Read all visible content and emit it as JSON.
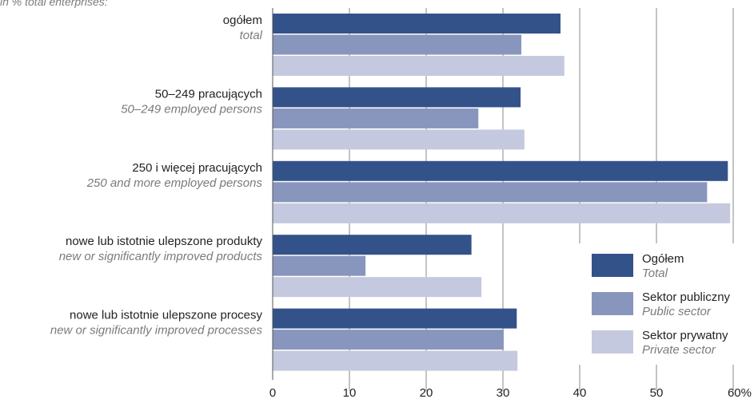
{
  "note": "in % total enterprises:",
  "chart_data": {
    "type": "bar",
    "orientation": "horizontal",
    "categories": [
      {
        "label": "ogółem",
        "sublabel": "total"
      },
      {
        "label": "50–249 pracujących",
        "sublabel": "50–249 employed persons"
      },
      {
        "label": "250 i więcej pracujących",
        "sublabel": "250 and more employed persons"
      },
      {
        "label": "nowe lub istotnie ulepszone produkty",
        "sublabel": "new or significantly improved products"
      },
      {
        "label": "nowe lub istotnie ulepszone procesy",
        "sublabel": "new or significantly improved processes"
      }
    ],
    "series": [
      {
        "name": "Ogółem",
        "subname": "Total",
        "color": "#34528a",
        "values": [
          37.5,
          32.3,
          59.3,
          25.9,
          31.8
        ]
      },
      {
        "name": "Sektor publiczny",
        "subname": "Public sector",
        "color": "#8896bd",
        "values": [
          32.4,
          26.8,
          56.6,
          12.1,
          30.1
        ]
      },
      {
        "name": "Sektor prywatny",
        "subname": "Private sector",
        "color": "#c5c9df",
        "values": [
          38.0,
          32.8,
          59.6,
          27.2,
          31.9
        ]
      }
    ],
    "x_ticks": [
      "0",
      "10",
      "20",
      "30",
      "40",
      "50",
      "60%"
    ],
    "xlim": [
      0,
      60
    ],
    "grid": "vertical",
    "legend_position": "bottom-right"
  }
}
